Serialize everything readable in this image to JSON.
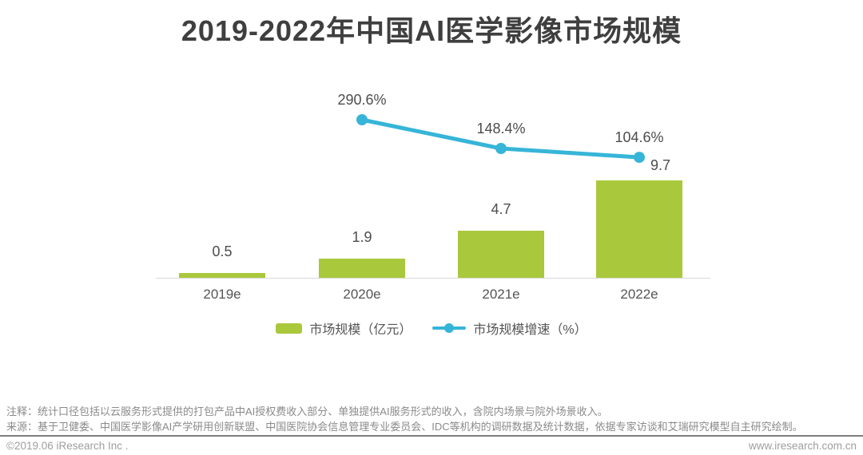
{
  "title": "2019-2022年中国AI医学影像市场规模",
  "chart_data": {
    "type": "bar",
    "title": "2019-2022年中国AI医学影像市场规模",
    "categories": [
      "2019e",
      "2020e",
      "2021e",
      "2022e"
    ],
    "series": [
      {
        "name": "市场规模（亿元）",
        "type": "bar",
        "values": [
          0.5,
          1.9,
          4.7,
          9.7
        ],
        "color": "#aac83c"
      },
      {
        "name": "市场规模增速（%）",
        "type": "line",
        "values": [
          null,
          290.6,
          148.4,
          104.6
        ],
        "color": "#36b5d8"
      }
    ],
    "bar_value_labels": [
      "0.5",
      "1.9",
      "4.7",
      "9.7"
    ],
    "growth_value_labels": [
      null,
      "290.6%",
      "148.4%",
      "104.6%"
    ],
    "xlabel": "",
    "ylabel": "",
    "grid": false,
    "legend_position": "bottom"
  },
  "legend": {
    "bar_label": "市场规模（亿元）",
    "line_label": "市场规模增速（%）"
  },
  "notes": {
    "note_line": "注释：统计口径包括以云服务形式提供的打包产品中AI授权费收入部分、单独提供AI服务形式的收入，含院内场景与院外场景收入。",
    "source_line": "来源：基于卫健委、中国医学影像AI产学研用创新联盟、中国医院协会信息管理专业委员会、IDC等机构的调研数据及统计数据，依据专家访谈和艾瑞研究模型自主研究绘制。"
  },
  "footer": {
    "copyright": "©2019.06 iResearch Inc .",
    "website": "www.iresearch.com.cn"
  },
  "colors": {
    "bar": "#aac83c",
    "line": "#36b5d8",
    "title_text": "#3f3f3f",
    "label_text": "#555555",
    "axis": "#d9d9d9"
  }
}
